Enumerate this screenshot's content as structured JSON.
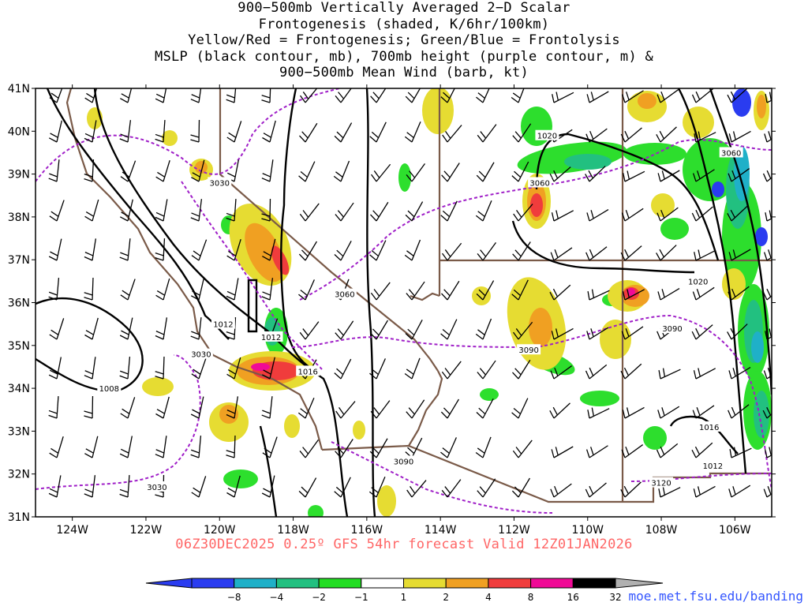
{
  "title_lines": [
    "900−500mb Vertically Averaged 2−D Scalar",
    "Frontogenesis (shaded, K/6hr/100km)",
    "Yellow/Red = Frontogenesis;  Green/Blue = Frontolysis",
    "MSLP (black contour, mb), 700mb height (purple contour, m) &",
    "900−500mb Mean Wind (barb, kt)"
  ],
  "lat_labels": [
    "41N",
    "40N",
    "39N",
    "38N",
    "37N",
    "36N",
    "35N",
    "34N",
    "33N",
    "32N",
    "31N"
  ],
  "lon_labels": [
    "124W",
    "122W",
    "120W",
    "118W",
    "116W",
    "114W",
    "112W",
    "110W",
    "108W",
    "106W"
  ],
  "footer": "06Z30DEC2025 0.25º GFS 54hr forecast Valid 12Z01JAN2026",
  "credit": "moe.met.fsu.edu/banding",
  "colorbar": {
    "labels": [
      "−8",
      "−4",
      "−2",
      "−1",
      "1",
      "2",
      "4",
      "8",
      "16",
      "32"
    ],
    "colors": [
      "#2a3cf0",
      "#1fb0c8",
      "#22c080",
      "#22dd22",
      "#ffffff",
      "#e6dc32",
      "#f0a022",
      "#f03c3c",
      "#f00a96",
      "#000000"
    ]
  },
  "mslp_labels": [
    {
      "text": "1020",
      "lat": 39.9,
      "lon": -111.1
    },
    {
      "text": "1020",
      "lat": 36.5,
      "lon": -107.0
    },
    {
      "text": "1016",
      "lat": 34.4,
      "lon": -117.6
    },
    {
      "text": "1016",
      "lat": 33.1,
      "lon": -106.7
    },
    {
      "text": "1012",
      "lat": 35.5,
      "lon": -119.9
    },
    {
      "text": "1012",
      "lat": 35.2,
      "lon": -118.6
    },
    {
      "text": "1012",
      "lat": 32.2,
      "lon": -106.6
    },
    {
      "text": "1008",
      "lat": 34.0,
      "lon": -123.0
    }
  ],
  "hgt_labels": [
    {
      "text": "3030",
      "lat": 38.8,
      "lon": -120.0
    },
    {
      "text": "3060",
      "lat": 36.2,
      "lon": -116.6
    },
    {
      "text": "3060",
      "lat": 38.8,
      "lon": -111.3
    },
    {
      "text": "3060",
      "lat": 39.5,
      "lon": -106.1
    },
    {
      "text": "3090",
      "lat": 34.9,
      "lon": -111.6
    },
    {
      "text": "3090",
      "lat": 35.4,
      "lon": -107.7
    },
    {
      "text": "3090",
      "lat": 32.3,
      "lon": -115.0
    },
    {
      "text": "3030",
      "lat": 31.7,
      "lon": -121.7
    },
    {
      "text": "3030",
      "lat": 34.8,
      "lon": -120.5
    },
    {
      "text": "3120",
      "lat": 31.8,
      "lon": -108.0
    }
  ]
}
